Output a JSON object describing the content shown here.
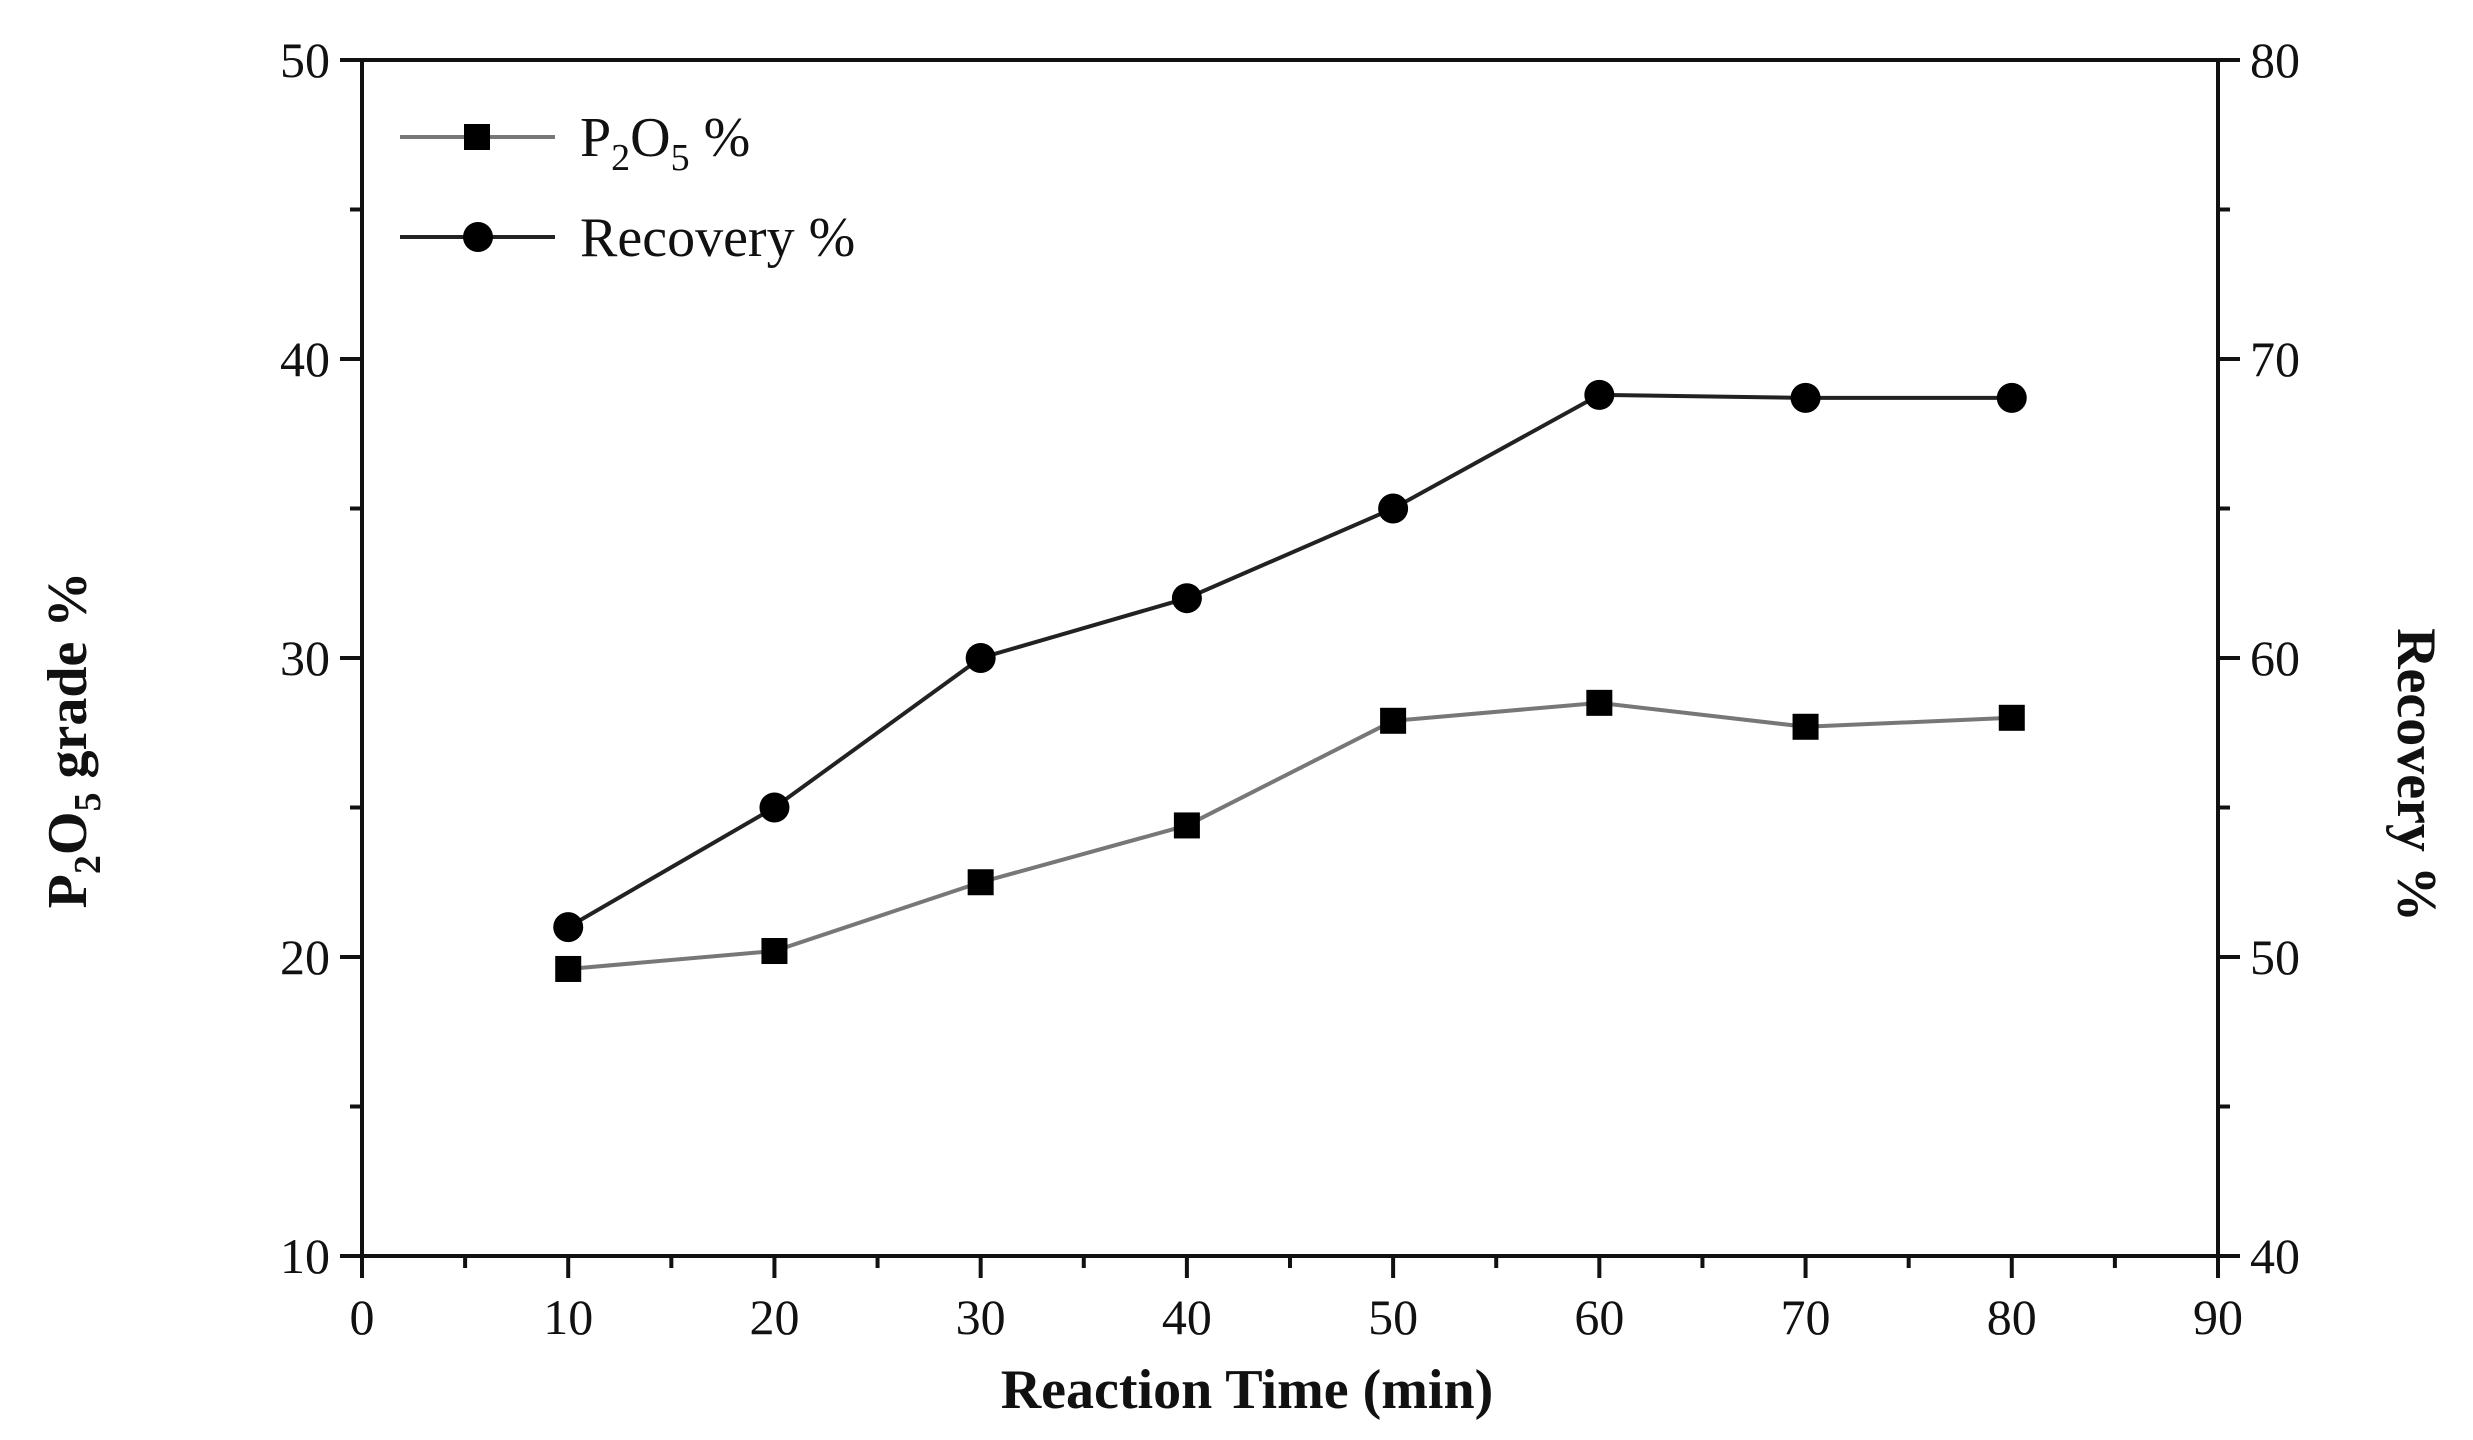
{
  "chart_data": {
    "type": "line",
    "xlabel": "Reaction Time (min)",
    "ylabel_left": {
      "main": "P",
      "sub1": "2",
      "mid": "O",
      "sub2": "5",
      "rest": " grade %"
    },
    "ylabel_right": "Recovery %",
    "xlim": [
      0,
      90
    ],
    "ylim_left": [
      10,
      50
    ],
    "ylim_right": [
      40,
      80
    ],
    "x_ticks": [
      0,
      10,
      20,
      30,
      40,
      50,
      60,
      70,
      80,
      90
    ],
    "y_left_ticks": [
      10,
      20,
      30,
      40,
      50
    ],
    "y_right_ticks": [
      40,
      50,
      60,
      70,
      80
    ],
    "legend_position": "top-left",
    "x": [
      10,
      20,
      30,
      40,
      50,
      60,
      70,
      80
    ],
    "series": [
      {
        "name": "P2O5 %",
        "legend": {
          "main": "P",
          "sub1": "2",
          "mid": "O",
          "sub2": "5",
          "rest": "  %"
        },
        "axis": "left",
        "marker": "square",
        "line_color": "#777777",
        "values": [
          19.6,
          20.2,
          22.5,
          24.4,
          27.9,
          28.5,
          27.7,
          28.0
        ]
      },
      {
        "name": "Recovery %",
        "legend": {
          "main": "Recovery %"
        },
        "axis": "right",
        "marker": "circle",
        "line_color": "#222222",
        "values": [
          51.0,
          55.0,
          60.0,
          62.0,
          65.0,
          68.8,
          68.7,
          68.7
        ]
      }
    ]
  }
}
